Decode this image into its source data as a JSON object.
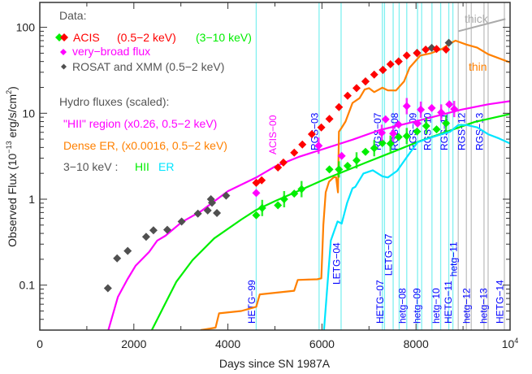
{
  "chart_data": {
    "type": "scatter",
    "title": "",
    "xlabel": "Days since SN 1987A",
    "ylabel": "Observed Flux (10",
    "ylabel_exp": "−13",
    "ylabel_unit": " erg/s/cm",
    "ylabel_unit_exp": "2",
    "ylabel_close": ")",
    "xlim": [
      0,
      10000
    ],
    "ylim": [
      0.03,
      195
    ],
    "yscale": "log",
    "x_ticks": [
      {
        "value": 0,
        "label": "0"
      },
      {
        "value": 2000,
        "label": "2000"
      },
      {
        "value": 4000,
        "label": "4000"
      },
      {
        "value": 6000,
        "label": "6000"
      },
      {
        "value": 8000,
        "label": "8000"
      },
      {
        "value": 10000,
        "label": "10",
        "exp": "4"
      }
    ],
    "y_ticks": [
      {
        "value": 0.1,
        "label": "0.1"
      },
      {
        "value": 1,
        "label": "1"
      },
      {
        "value": 10,
        "label": "10"
      },
      {
        "value": 100,
        "label": "100"
      }
    ],
    "legend": {
      "data_heading": "Data:",
      "acis": "ACIS",
      "acis_soft": "(0.5−2 keV)",
      "acis_hard": "(3−10 keV)",
      "broad": "very−broad flux",
      "rosat": "ROSAT and XMM (0.5−2 keV)",
      "hydro_heading": "Hydro fluxes (scaled):",
      "hii": "\"HII\" region (x0.26, 0.5−2 keV)",
      "dense": "Dense ER, (x0.0016, 0.5−2 keV)",
      "hard_prefix": "3−10 keV :",
      "hard_hii": "HII",
      "hard_er": "ER"
    },
    "annotations": {
      "acis00": "ACIS−00",
      "thick": "thick",
      "thin": "thin"
    },
    "thick_line": [
      [
        8900,
        90
      ],
      [
        9900,
        125
      ]
    ],
    "colors": {
      "acis_soft": "#ff0000",
      "acis_hard": "#00ee00",
      "broad": "#ff00ff",
      "rosat": "#505050",
      "hii": "#ff00ff",
      "dense": "#ff8000",
      "hard_hii": "#00ee00",
      "hard_er": "#00e5ff",
      "obs_cyan": "#80f0f0",
      "obs_grey": "#c0c0c0",
      "obs_label": "#0000ff",
      "text": "#555555",
      "thick": "#aaaaaa"
    },
    "series": [
      {
        "name": "ROSAT and XMM (0.5−2 keV)",
        "kind": "points",
        "color": "#505050",
        "x": [
          1448,
          1644,
          1869,
          2261,
          2417,
          2711,
          3016,
          3362,
          3570,
          3639,
          3662,
          3766,
          3962,
          6926,
          7296,
          7630,
          8022,
          8334,
          8697
        ],
        "y": [
          0.092,
          0.205,
          0.25,
          0.365,
          0.435,
          0.44,
          0.55,
          0.68,
          0.74,
          1.0,
          0.91,
          0.69,
          1.1,
          23.5,
          31.9,
          40,
          50.4,
          57.6,
          66
        ]
      },
      {
        "name": "ACIS (0.5−2 keV)",
        "kind": "points",
        "color": "#ff0000",
        "x": [
          4602,
          4718,
          5064,
          5180,
          5410,
          5583,
          5785,
          5986,
          6159,
          6361,
          6545,
          6736,
          6926,
          7111,
          7296,
          7457,
          7630,
          7803,
          8022,
          8206,
          8437,
          8639
        ],
        "y": [
          1.55,
          1.66,
          2.34,
          2.67,
          3.48,
          4.33,
          5.71,
          6.84,
          8.6,
          11.8,
          16,
          19.6,
          23.5,
          28.2,
          31.9,
          37.2,
          40,
          47,
          50,
          55,
          56,
          55
        ]
      },
      {
        "name": "ACIS (3−10 keV)",
        "kind": "points",
        "color": "#00ee00",
        "x": [
          4602,
          4729,
          5064,
          5196,
          5410,
          5566,
          6159,
          6361,
          6545,
          6736,
          6926,
          7111,
          7284,
          7457,
          7630,
          7803,
          8022,
          8218,
          8437,
          8639
        ],
        "y": [
          0.65,
          0.79,
          0.85,
          1.0,
          1.16,
          1.31,
          2.22,
          2.22,
          2.44,
          2.83,
          3.56,
          3.92,
          4.5,
          4.43,
          5.3,
          5.43,
          6.14,
          7.1,
          6.5,
          7.64
        ]
      },
      {
        "name": "very−broad flux",
        "kind": "points",
        "color": "#ff00ff",
        "x": [
          4602,
          5929,
          6419,
          7272,
          7353,
          7514,
          7630,
          7803,
          8033,
          8102,
          8334,
          8535,
          8708,
          8812
        ],
        "y": [
          1.18,
          4.19,
          3.19,
          5.93,
          8.5,
          5.8,
          7.37,
          12.1,
          7.6,
          11,
          11.5,
          10.2,
          12.7,
          11.2
        ]
      },
      {
        "name": "\"HII\" region (x0.26, 0.5−2 keV)",
        "kind": "line",
        "color": "#ff00ff",
        "x": [
          1457,
          1661,
          1863,
          2036,
          2324,
          2497,
          2670,
          3016,
          3420,
          4000,
          4602,
          5000,
          5500,
          6073,
          6649,
          7227,
          7803,
          8379,
          8956,
          9533,
          10023
        ],
        "y": [
          0.03,
          0.073,
          0.117,
          0.168,
          0.243,
          0.33,
          0.375,
          0.54,
          0.72,
          1.24,
          1.79,
          2.4,
          3.1,
          3.9,
          4.93,
          6.37,
          7.6,
          9.1,
          11,
          12.7,
          13.9
        ]
      },
      {
        "name": "Dense ER, (x0.0016, 0.5−2 keV)",
        "kind": "line",
        "color": "#ff8000",
        "x": [
          3420,
          3737,
          3812,
          4285,
          4602,
          4677,
          5410,
          5485,
          5900,
          5986,
          6030,
          6080,
          6150,
          6250,
          6300,
          6340,
          6361,
          6419,
          6500,
          6649,
          6800,
          6908,
          7000,
          7111,
          7284,
          7400,
          7573,
          7746,
          7861,
          8092,
          8322,
          8552,
          8726,
          8840,
          9071,
          9300,
          9533,
          10023
        ],
        "y": [
          0.03,
          0.032,
          0.047,
          0.05,
          0.056,
          0.078,
          0.086,
          0.115,
          0.117,
          0.12,
          0.5,
          1.2,
          1.6,
          1.8,
          1.8,
          1.2,
          6.1,
          6.8,
          8,
          13.2,
          15,
          18.9,
          19.6,
          17.6,
          19.8,
          18.5,
          18.4,
          23.5,
          33.8,
          47,
          50,
          56,
          65,
          70,
          63,
          58,
          48.6,
          38.6
        ]
      },
      {
        "name": "3−10 keV HII",
        "kind": "line",
        "color": "#00ee00",
        "x": [
          2382,
          2612,
          2901,
          3247,
          3708,
          4285,
          4602,
          5000,
          5500,
          6073,
          6938,
          7514,
          8092,
          8668,
          9244,
          10023
        ],
        "y": [
          0.03,
          0.053,
          0.109,
          0.195,
          0.35,
          0.58,
          0.75,
          0.95,
          1.25,
          1.72,
          2.67,
          3.56,
          4.77,
          6.14,
          7.9,
          9.85
        ]
      },
      {
        "name": "3−10 keV ER",
        "kind": "line",
        "color": "#00e5ff",
        "x": [
          6044,
          6188,
          6332,
          6419,
          6534,
          6649,
          6708,
          6880,
          7082,
          7284,
          7400,
          7600,
          7803,
          8033,
          8264,
          8495,
          8726,
          8899,
          9071,
          9302,
          9533,
          9763,
          10023
        ],
        "y": [
          0.03,
          0.33,
          0.55,
          0.52,
          0.9,
          1.34,
          1.39,
          1.99,
          2.17,
          1.85,
          1.79,
          2.14,
          3.08,
          4.6,
          5.1,
          5.6,
          6.1,
          7.3,
          7.3,
          6.85,
          5.7,
          5.1,
          4.4
        ]
      }
    ],
    "observations": [
      {
        "day": 4602,
        "label": "HETG−99",
        "pos": "low",
        "color": "cyan"
      },
      {
        "day": 5939,
        "label": "RGS−03",
        "pos": "high",
        "color": "cyan"
      },
      {
        "day": 6407,
        "label": "LETG−04",
        "pos": "mid",
        "color": "cyan"
      },
      {
        "day": 7284,
        "label": "RGS−07",
        "pos": "high",
        "color": "cyan"
      },
      {
        "day": 7330,
        "label": "HETG−07",
        "pos": "low",
        "color": "cyan"
      },
      {
        "day": 7514,
        "label": "LETG−07",
        "pos": "low2",
        "color": "cyan"
      },
      {
        "day": 7642,
        "label": "RGS−08",
        "pos": "high",
        "color": "cyan"
      },
      {
        "day": 7803,
        "label": "hetg−08",
        "pos": "low",
        "color": "cyan"
      },
      {
        "day": 8033,
        "label": "RGS−09",
        "pos": "high",
        "color": "cyan"
      },
      {
        "day": 8120,
        "label": "hetg−09",
        "pos": "low",
        "color": "cyan"
      },
      {
        "day": 8339,
        "label": "RGS−10",
        "pos": "high",
        "color": "cyan"
      },
      {
        "day": 8524,
        "label": "hetg−10",
        "pos": "low",
        "color": "cyan"
      },
      {
        "day": 8697,
        "label": "RGS−11",
        "pos": "high",
        "color": "cyan"
      },
      {
        "day": 8784,
        "label": "HETG−11",
        "pos": "low2",
        "color": "cyan"
      },
      {
        "day": 8898,
        "label": "hetg−11",
        "pos": "low",
        "color": "grey"
      },
      {
        "day": 9071,
        "label": "RGS−12",
        "pos": "high",
        "color": "grey"
      },
      {
        "day": 9175,
        "label": "hetg−12",
        "pos": "low",
        "color": "grey"
      },
      {
        "day": 9446,
        "label": "RGS−13",
        "pos": "high",
        "color": "grey"
      },
      {
        "day": 9533,
        "label": "hetg−13",
        "pos": "low",
        "color": "grey"
      },
      {
        "day": 9879,
        "label": "HETG−14",
        "pos": "low2",
        "color": "grey"
      }
    ]
  }
}
